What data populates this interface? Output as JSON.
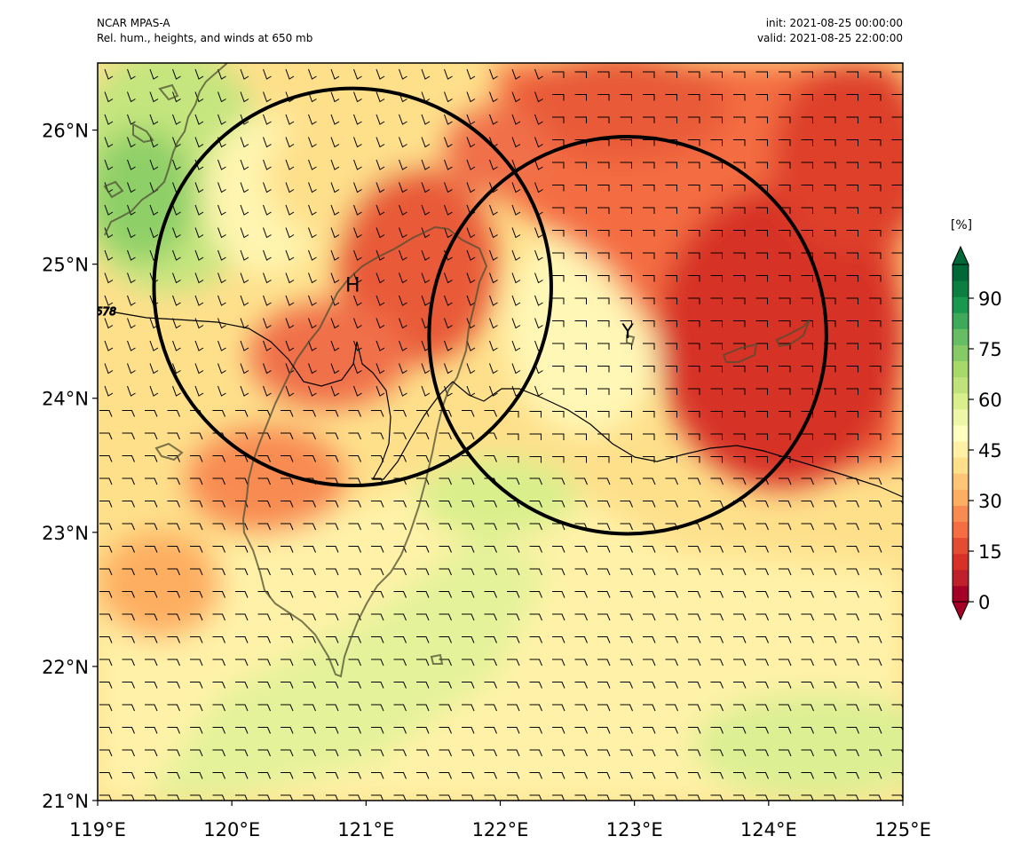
{
  "header": {
    "model": "NCAR MPAS-A",
    "field": "Rel. hum., heights, and winds at 650 mb",
    "init": "init: 2021-08-25 00:00:00",
    "valid": "valid: 2021-08-25 22:00:00"
  },
  "map": {
    "extent": {
      "lon": [
        119,
        125
      ],
      "lat": [
        21,
        26.5
      ]
    },
    "x_ticks": [
      "119°E",
      "120°E",
      "121°E",
      "122°E",
      "123°E",
      "124°E",
      "125°E"
    ],
    "x_tick_values": [
      119,
      120,
      121,
      122,
      123,
      124,
      125
    ],
    "y_ticks": [
      "21°N",
      "22°N",
      "23°N",
      "24°N",
      "25°N",
      "26°N"
    ],
    "y_tick_values": [
      21,
      22,
      23,
      24,
      25,
      26
    ],
    "markers": [
      {
        "label": "H",
        "lon": 120.9,
        "lat": 24.85
      },
      {
        "label": "Y",
        "lon": 122.95,
        "lat": 24.5
      }
    ],
    "circles": [
      {
        "center_lon": 120.9,
        "center_lat": 24.83,
        "radius_deg": 1.48
      },
      {
        "center_lon": 122.95,
        "center_lat": 24.47,
        "radius_deg": 1.48
      }
    ],
    "contour_label": "578",
    "wind_barbs": "northwesterly-to-easterly light winds"
  },
  "colorbar": {
    "unit": "[%]",
    "tick_labels": [
      "0",
      "15",
      "30",
      "45",
      "60",
      "75",
      "90"
    ],
    "tick_values": [
      0,
      15,
      30,
      45,
      60,
      75,
      90
    ],
    "range": [
      0,
      100
    ],
    "colors": [
      "#a50026",
      "#c0202c",
      "#d73027",
      "#e34c33",
      "#f46d43",
      "#f88b51",
      "#fdae61",
      "#fec576",
      "#fee08b",
      "#fff0a6",
      "#ffffbf",
      "#eef7a8",
      "#d9ef8b",
      "#bfe27a",
      "#a6d96a",
      "#85ca66",
      "#66bd63",
      "#3fa95a",
      "#1a9850",
      "#0c7f40",
      "#006837"
    ]
  },
  "colors": {
    "dry": "#d73027",
    "moist": "#66bd63",
    "neutral": "#ffffbf",
    "coast": "#4d4d33",
    "circle": "#000000"
  }
}
